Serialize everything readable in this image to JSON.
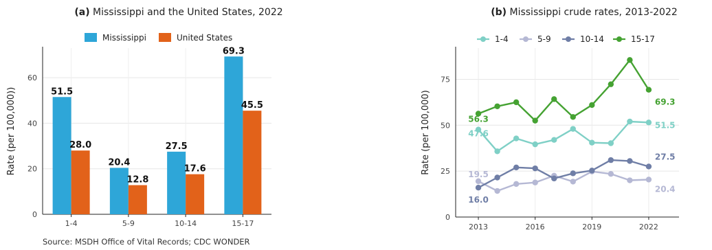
{
  "panel_a_title": {
    "tag": "(a)",
    "text": "Mississippi and the United States, 2022"
  },
  "panel_b_title": {
    "tag": "(b)",
    "text": "Mississippi crude rates, 2013-2022"
  },
  "source": "Source: MSDH Office of Vital Records; CDC WONDER",
  "chart_data": [
    {
      "type": "bar",
      "title": "(a) Mississippi and the United States, 2022",
      "categories": [
        "1-4",
        "5-9",
        "10-14",
        "15-17"
      ],
      "series": [
        {
          "name": "Mississippi",
          "values": [
            51.5,
            20.4,
            27.5,
            69.3
          ],
          "color": "#2ea6d8"
        },
        {
          "name": "United States",
          "values": [
            28.0,
            12.8,
            17.6,
            45.5
          ],
          "color": "#e2621a"
        }
      ],
      "ylabel": "Rate (per 100,000))",
      "xlabel": "",
      "ylim": [
        0,
        73
      ],
      "yticks": [
        0,
        20,
        40,
        60
      ],
      "legend": "top",
      "grid": true,
      "data_labels": true
    },
    {
      "type": "line",
      "title": "(b) Mississippi crude rates, 2013-2022",
      "x": [
        2013,
        2014,
        2015,
        2016,
        2017,
        2018,
        2019,
        2020,
        2021,
        2022
      ],
      "xticks": [
        2013,
        2016,
        2019,
        2022
      ],
      "series": [
        {
          "name": "1-4",
          "color": "#7fd0c6",
          "values": [
            47.6,
            35.8,
            42.8,
            39.6,
            42.0,
            48.0,
            40.5,
            40.2,
            52.0,
            51.5
          ],
          "labels": {
            "first": "47.6",
            "last": "51.5"
          }
        },
        {
          "name": "5-9",
          "color": "#b5b8d4",
          "values": [
            19.5,
            14.2,
            18.0,
            18.8,
            22.5,
            19.3,
            24.8,
            23.5,
            20.0,
            20.4
          ],
          "labels": {
            "first": "19.5",
            "last": "20.4"
          }
        },
        {
          "name": "10-14",
          "color": "#6f7ea6",
          "values": [
            16.0,
            21.5,
            27.0,
            26.5,
            21.0,
            23.8,
            25.3,
            31.0,
            30.5,
            27.5
          ],
          "labels": {
            "first": "16.0",
            "last": "27.5"
          }
        },
        {
          "name": "15-17",
          "color": "#45a232",
          "values": [
            56.3,
            60.3,
            62.5,
            52.5,
            64.2,
            54.5,
            61.0,
            72.3,
            85.5,
            69.3
          ],
          "labels": {
            "first": "56.3",
            "last": "69.3"
          }
        }
      ],
      "ylabel": "Rate (per 100,000)",
      "xlabel": "",
      "ylim": [
        0,
        92
      ],
      "yticks": [
        0,
        25,
        50,
        75
      ],
      "legend": "top",
      "grid": true
    }
  ]
}
